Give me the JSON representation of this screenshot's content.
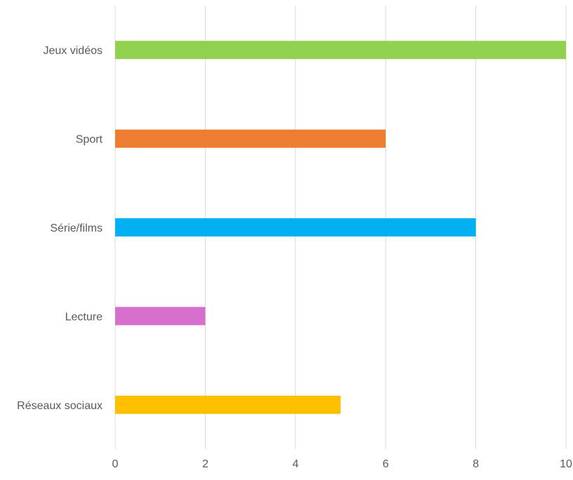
{
  "chart_data": {
    "type": "bar",
    "orientation": "horizontal",
    "title": "",
    "xlabel": "",
    "ylabel": "",
    "categories": [
      "Jeux vidéos",
      "Sport",
      "Série/films",
      "Lecture",
      "Réseaux sociaux"
    ],
    "values": [
      10,
      6,
      8,
      2,
      5
    ],
    "colors": [
      "#92D050",
      "#ED7D31",
      "#00B0F0",
      "#D670CC",
      "#FFC000"
    ],
    "xlim": [
      0,
      10
    ],
    "xticks": [
      "0",
      "2",
      "4",
      "6",
      "8",
      "10"
    ],
    "grid": true,
    "gridColor": "#D9D9D9",
    "legend": "none"
  }
}
